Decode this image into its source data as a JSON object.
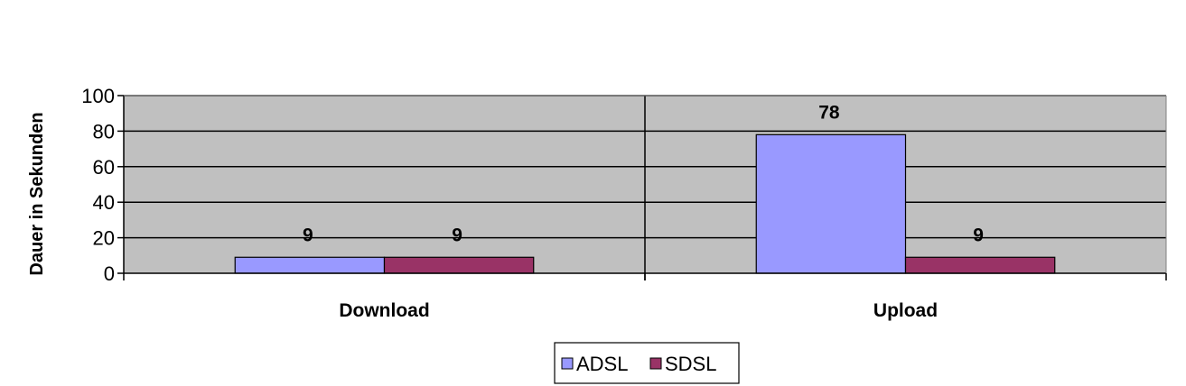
{
  "chart_data": {
    "type": "bar",
    "title": "",
    "xlabel": "",
    "ylabel": "Dauer in Sekunden",
    "categories": [
      "Download",
      "Upload"
    ],
    "series": [
      {
        "name": "ADSL",
        "values": [
          9,
          78
        ],
        "color": "#9999ff"
      },
      {
        "name": "SDSL",
        "values": [
          9,
          9
        ],
        "color": "#993366"
      }
    ],
    "ylim": [
      0,
      100
    ],
    "yticks": [
      0,
      20,
      40,
      60,
      80,
      100
    ],
    "grid": true,
    "plot_background": "#c0c0c0",
    "legend": "bottom"
  }
}
